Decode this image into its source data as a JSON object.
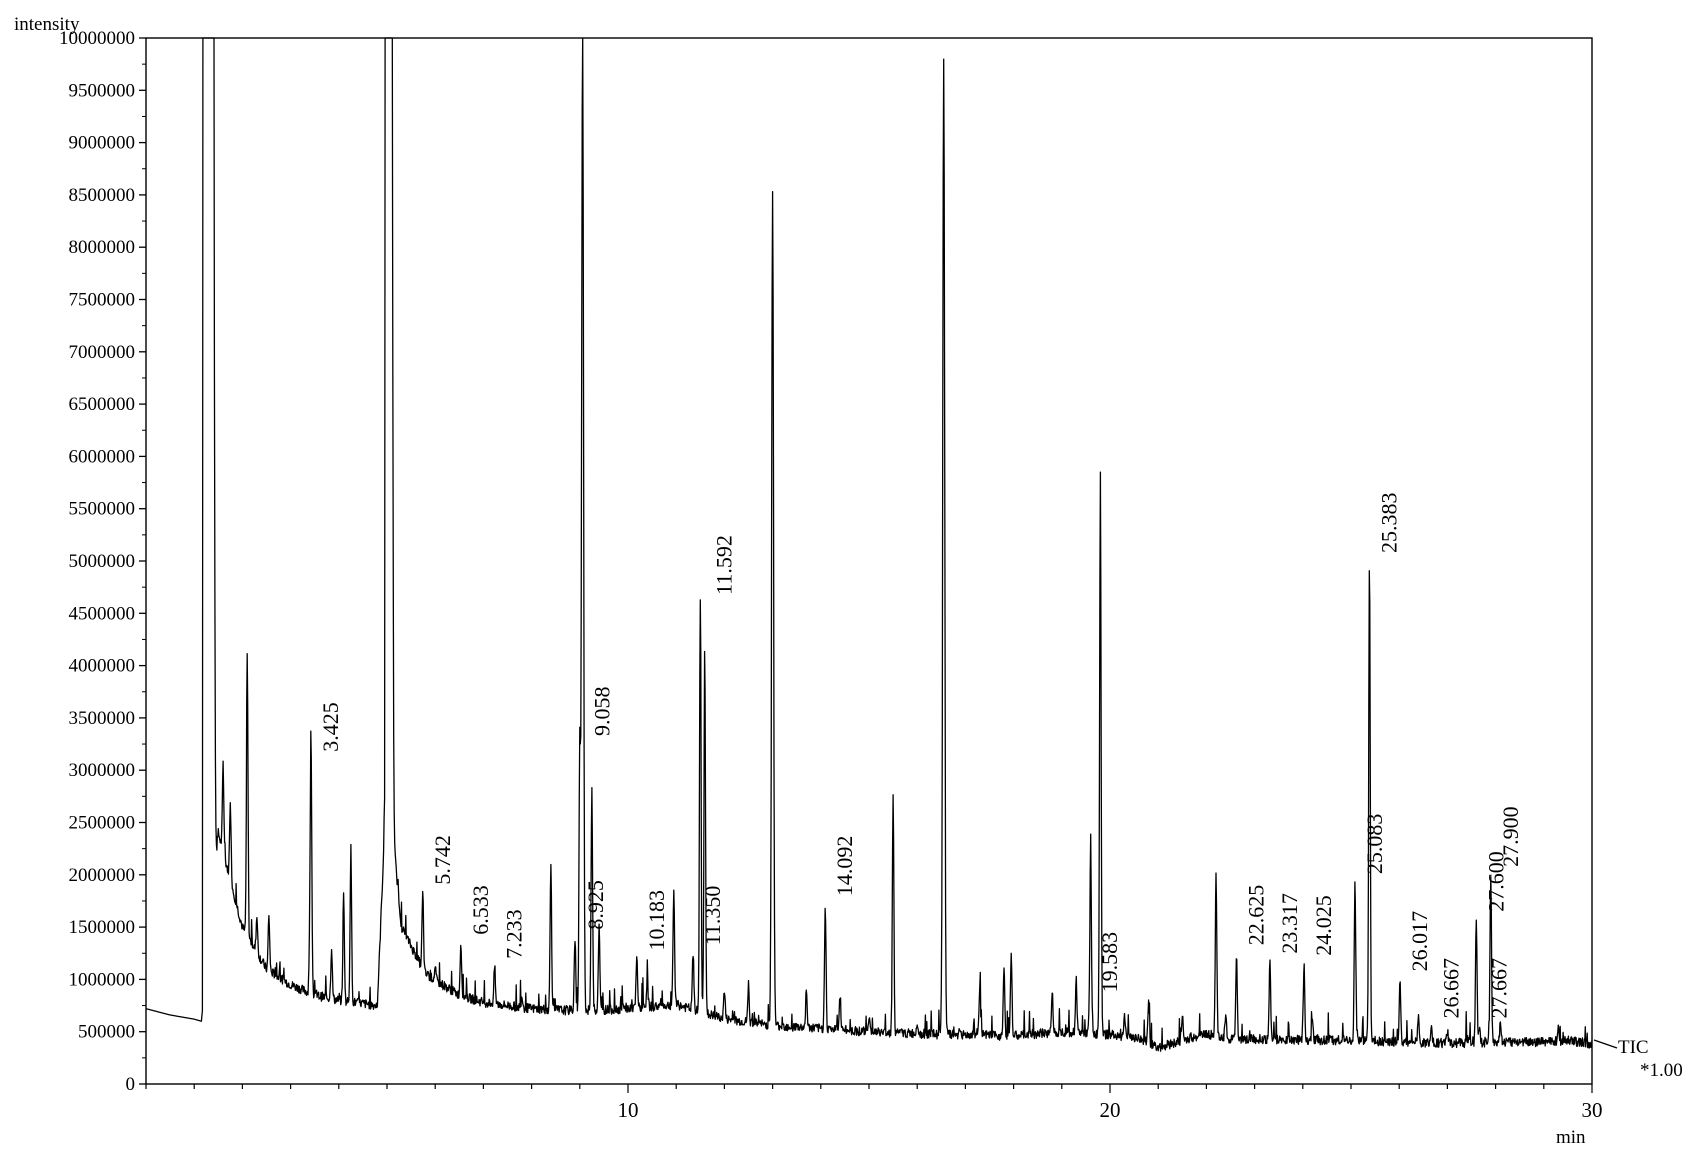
{
  "chart_data": {
    "type": "line",
    "ylabel": "intensity",
    "xlabel": "min",
    "xlim": [
      0,
      30
    ],
    "ylim": [
      0,
      10000000
    ],
    "x_ticks": [
      10,
      20,
      30
    ],
    "y_ticks": [
      0,
      500000,
      1000000,
      1500000,
      2000000,
      2500000,
      3000000,
      3500000,
      4000000,
      4500000,
      5000000,
      5500000,
      6000000,
      6500000,
      7000000,
      7500000,
      8000000,
      8500000,
      9000000,
      9500000,
      10000000
    ],
    "grid": false,
    "series": [
      {
        "name": "TIC",
        "scale_label": "*1.00",
        "baseline": [
          [
            0,
            720000
          ],
          [
            0.5,
            660000
          ],
          [
            1.0,
            620000
          ],
          [
            1.15,
            600000
          ],
          [
            1.5,
            2400000
          ],
          [
            2.0,
            1500000
          ],
          [
            2.5,
            1100000
          ],
          [
            3.0,
            950000
          ],
          [
            3.5,
            850000
          ],
          [
            4.0,
            800000
          ],
          [
            4.5,
            770000
          ],
          [
            4.8,
            750000
          ],
          [
            5.0,
            3000000
          ],
          [
            5.3,
            1500000
          ],
          [
            5.8,
            1050000
          ],
          [
            6.5,
            850000
          ],
          [
            7.0,
            780000
          ],
          [
            8.0,
            720000
          ],
          [
            9.0,
            700000
          ],
          [
            10.0,
            720000
          ],
          [
            11.0,
            760000
          ],
          [
            12.0,
            620000
          ],
          [
            13.0,
            560000
          ],
          [
            14.0,
            530000
          ],
          [
            15.0,
            500000
          ],
          [
            16.0,
            480000
          ],
          [
            17.0,
            470000
          ],
          [
            18.0,
            460000
          ],
          [
            19.0,
            500000
          ],
          [
            20.0,
            470000
          ],
          [
            20.5,
            450000
          ],
          [
            21.0,
            350000
          ],
          [
            22.0,
            480000
          ],
          [
            22.5,
            430000
          ],
          [
            23.0,
            430000
          ],
          [
            24.0,
            420000
          ],
          [
            25.0,
            420000
          ],
          [
            26.0,
            400000
          ],
          [
            27.0,
            390000
          ],
          [
            28.0,
            400000
          ],
          [
            29.0,
            400000
          ],
          [
            29.5,
            420000
          ],
          [
            30.0,
            380000
          ]
        ],
        "peaks": [
          [
            1.35,
            10000000
          ],
          [
            1.4,
            10000000
          ],
          [
            1.6,
            3000000
          ],
          [
            1.75,
            2700000
          ],
          [
            2.1,
            4100000
          ],
          [
            2.3,
            1600000
          ],
          [
            2.55,
            1600000
          ],
          [
            3.4,
            1400000
          ],
          [
            3.425,
            3100000
          ],
          [
            3.85,
            1300000
          ],
          [
            4.1,
            1800000
          ],
          [
            4.25,
            2250000
          ],
          [
            5.0,
            10000000
          ],
          [
            5.1,
            10000000
          ],
          [
            5.742,
            1820000
          ],
          [
            6.0,
            1100000
          ],
          [
            6.533,
            1350000
          ],
          [
            7.233,
            1120000
          ],
          [
            7.8,
            850000
          ],
          [
            8.4,
            2100000
          ],
          [
            8.9,
            1400000
          ],
          [
            9.0,
            3250000
          ],
          [
            9.25,
            2850000
          ],
          [
            9.4,
            1500000
          ],
          [
            9.058,
            10000000
          ],
          [
            10.183,
            1200000
          ],
          [
            10.4,
            1000000
          ],
          [
            10.95,
            1850000
          ],
          [
            11.5,
            4600000
          ],
          [
            11.592,
            4200000
          ],
          [
            11.35,
            1250000
          ],
          [
            12.0,
            900000
          ],
          [
            12.5,
            900000
          ],
          [
            13.0,
            8500000
          ],
          [
            13.7,
            900000
          ],
          [
            14.092,
            1720000
          ],
          [
            14.4,
            850000
          ],
          [
            15.0,
            650000
          ],
          [
            15.5,
            2750000
          ],
          [
            16.0,
            600000
          ],
          [
            16.55,
            9800000
          ],
          [
            17.3,
            950000
          ],
          [
            17.8,
            1150000
          ],
          [
            17.95,
            1250000
          ],
          [
            18.8,
            900000
          ],
          [
            19.3,
            1000000
          ],
          [
            19.6,
            2000000
          ],
          [
            19.8,
            5850000
          ],
          [
            19.583,
            800000
          ],
          [
            20.3,
            650000
          ],
          [
            20.8,
            800000
          ],
          [
            21.5,
            650000
          ],
          [
            22.2,
            2030000
          ],
          [
            22.4,
            650000
          ],
          [
            22.625,
            1250000
          ],
          [
            23.317,
            1170000
          ],
          [
            24.025,
            1150000
          ],
          [
            24.2,
            600000
          ],
          [
            25.083,
            1930000
          ],
          [
            25.383,
            5000000
          ],
          [
            26.017,
            1000000
          ],
          [
            26.4,
            650000
          ],
          [
            26.667,
            550000
          ],
          [
            27.0,
            500000
          ],
          [
            27.4,
            450000
          ],
          [
            27.667,
            550000
          ],
          [
            27.6,
            1570000
          ],
          [
            27.9,
            2000000
          ],
          [
            28.1,
            600000
          ],
          [
            28.6,
            450000
          ],
          [
            29.3,
            550000
          ]
        ],
        "color": "#000000"
      }
    ],
    "peak_labels": [
      {
        "text": "3.425",
        "x": 3.425,
        "y": 3100000
      },
      {
        "text": "5.742",
        "x": 5.742,
        "y": 1830000
      },
      {
        "text": "6.533",
        "x": 6.533,
        "y": 1350000
      },
      {
        "text": "7.233",
        "x": 7.233,
        "y": 1120000
      },
      {
        "text": "8.925",
        "x": 8.925,
        "y": 1400000
      },
      {
        "text": "9.058",
        "x": 9.058,
        "y": 3250000
      },
      {
        "text": "10.183",
        "x": 10.183,
        "y": 1200000
      },
      {
        "text": "11.350",
        "x": 11.35,
        "y": 1250000
      },
      {
        "text": "11.592",
        "x": 11.592,
        "y": 4600000
      },
      {
        "text": "14.092",
        "x": 14.092,
        "y": 1720000
      },
      {
        "text": "19.583",
        "x": 19.583,
        "y": 800000
      },
      {
        "text": "22.625",
        "x": 22.625,
        "y": 1250000
      },
      {
        "text": "23.317",
        "x": 23.317,
        "y": 1170000
      },
      {
        "text": "24.025",
        "x": 24.025,
        "y": 1150000
      },
      {
        "text": "25.083",
        "x": 25.083,
        "y": 1930000
      },
      {
        "text": "25.383",
        "x": 25.383,
        "y": 5000000
      },
      {
        "text": "26.017",
        "x": 26.017,
        "y": 1000000
      },
      {
        "text": "26.667",
        "x": 26.667,
        "y": 550000
      },
      {
        "text": "27.600",
        "x": 27.6,
        "y": 1570000
      },
      {
        "text": "27.667",
        "x": 27.667,
        "y": 550000
      },
      {
        "text": "27.900",
        "x": 27.9,
        "y": 2000000
      }
    ]
  }
}
